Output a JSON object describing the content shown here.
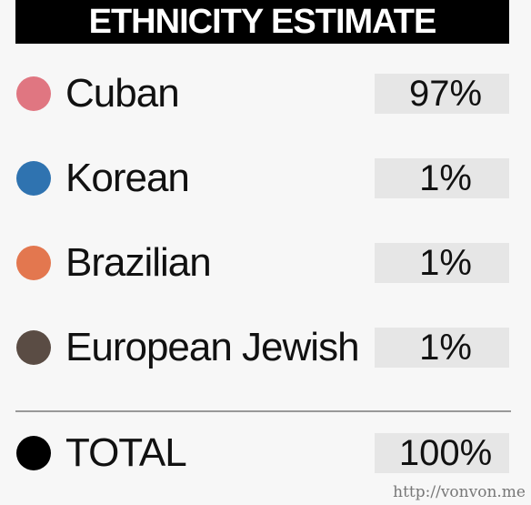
{
  "title": "ETHNICITY ESTIMATE",
  "rows": [
    {
      "label": "Cuban",
      "value": "97%",
      "color": "#e07681"
    },
    {
      "label": "Korean",
      "value": "1%",
      "color": "#2f73b0"
    },
    {
      "label": "Brazilian",
      "value": "1%",
      "color": "#e3774f"
    },
    {
      "label": "European Jewish",
      "value": "1%",
      "color": "#5a4c44"
    }
  ],
  "total": {
    "label": "TOTAL",
    "value": "100%",
    "color": "#000000"
  },
  "watermark": "http://vonvon.me"
}
